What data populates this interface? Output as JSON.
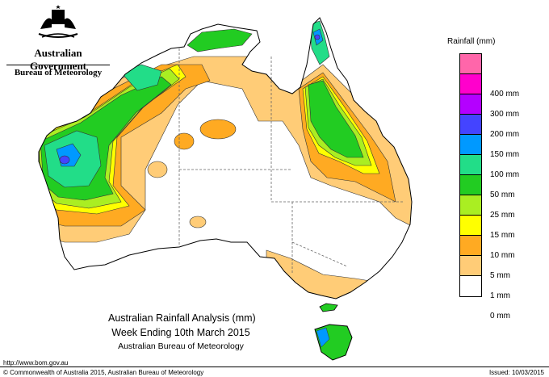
{
  "header": {
    "gov_title": "Australian Government",
    "bureau": "Bureau of Meteorology",
    "emblem_icon": "coat-of-arms-icon"
  },
  "legend": {
    "title": "Rainfall (mm)",
    "classes": [
      {
        "label": "",
        "color": "#ff66aa"
      },
      {
        "label": "400 mm",
        "color": "#ff00cc"
      },
      {
        "label": "300 mm",
        "color": "#b400ff"
      },
      {
        "label": "200 mm",
        "color": "#4444ff"
      },
      {
        "label": "150 mm",
        "color": "#0099ff"
      },
      {
        "label": "100 mm",
        "color": "#22dd88"
      },
      {
        "label": "50 mm",
        "color": "#22cc22"
      },
      {
        "label": "25 mm",
        "color": "#aaee22"
      },
      {
        "label": "15 mm",
        "color": "#ffff00"
      },
      {
        "label": "10 mm",
        "color": "#ffaa22"
      },
      {
        "label": "5 mm",
        "color": "#ffcc77"
      },
      {
        "label": "1 mm",
        "color": "#ffffff"
      },
      {
        "label": "0 mm",
        "color": ""
      }
    ]
  },
  "title": {
    "line1": "Australian Rainfall Analysis (mm)",
    "line2": "Week Ending 10th March 2015",
    "line3": "Australian Bureau of Meteorology"
  },
  "footer": {
    "url": "http://www.bom.gov.au",
    "copyright": "© Commonwealth of Australia 2015, Australian Bureau of Meteorology",
    "issued": "Issued: 10/03/2015"
  }
}
